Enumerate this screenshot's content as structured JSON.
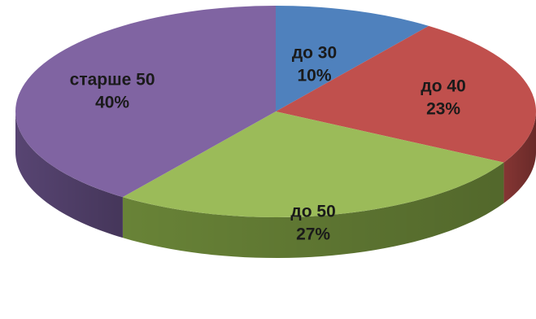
{
  "chart_data": {
    "type": "pie",
    "style": "3d",
    "slices": [
      {
        "label": "до 30",
        "percent_label": "10%",
        "value": 10,
        "color": "#4F81BD",
        "side_color": "#385D8A"
      },
      {
        "label": "до 40",
        "percent_label": "23%",
        "value": 23,
        "color": "#C0504D",
        "side_color": "#8C3836"
      },
      {
        "label": "до 50",
        "percent_label": "27%",
        "value": 27,
        "color": "#9BBB59",
        "side_color": "#6E8A3A"
      },
      {
        "label": "старше 50",
        "percent_label": "40%",
        "value": 40,
        "color": "#8064A2",
        "side_color": "#5C4878"
      }
    ]
  }
}
